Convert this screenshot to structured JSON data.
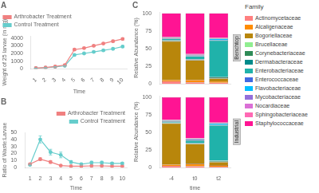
{
  "chart_data": [
    {
      "type": "line",
      "title": "A",
      "xlabel": "Time",
      "ylabel": "Weight of 25 larvae (in mg)",
      "x": [
        1,
        2,
        3,
        4,
        5,
        6,
        7,
        8,
        9,
        10
      ],
      "xlim": [
        0.5,
        10.5
      ],
      "xticks": [
        1,
        2,
        3,
        4,
        5,
        6,
        7,
        8,
        9,
        10
      ],
      "ylim": [
        0,
        4300
      ],
      "yticks": [
        0,
        1000,
        2000,
        3000,
        4000
      ],
      "grid": false,
      "legend": "upper left",
      "series": [
        {
          "name": "Arthrobacter Treatment",
          "color": "#f08080",
          "marker": "circle",
          "values": [
            80,
            150,
            280,
            480,
            2500,
            2700,
            3000,
            3300,
            3600,
            3900
          ],
          "error": [
            10,
            20,
            30,
            50,
            120,
            100,
            100,
            120,
            130,
            140
          ]
        },
        {
          "name": "Control Treatment",
          "color": "#66cdcc",
          "marker": "circle",
          "values": [
            70,
            130,
            240,
            380,
            1800,
            2000,
            2200,
            2400,
            2600,
            2900
          ],
          "error": [
            10,
            15,
            25,
            40,
            100,
            90,
            90,
            100,
            110,
            120
          ]
        }
      ]
    },
    {
      "type": "line",
      "title": "B",
      "xlabel": "Time",
      "ylabel": "Ratio of Waste:Larvae",
      "x": [
        1,
        2,
        3,
        4,
        5,
        6,
        7,
        8,
        9,
        10
      ],
      "xlim": [
        0.5,
        10.5
      ],
      "xticks": [
        1,
        2,
        3,
        4,
        5,
        6,
        7,
        8,
        9,
        10
      ],
      "ylim": [
        0,
        50
      ],
      "yticks": [
        0,
        10,
        20,
        30,
        40,
        50
      ],
      "grid": false,
      "legend": "upper right",
      "series": [
        {
          "name": "Arthrobacter Treatment",
          "color": "#f08080",
          "marker": "circle",
          "values": [
            5,
            12,
            8,
            3,
            2,
            2,
            2.5,
            2.5,
            2,
            2
          ],
          "error": [
            1,
            2,
            2,
            1,
            0.5,
            0.5,
            0.5,
            0.5,
            0.5,
            0.5
          ]
        },
        {
          "name": "Control Treatment",
          "color": "#66cdcc",
          "marker": "circle",
          "values": [
            4,
            40,
            22,
            18,
            8,
            5,
            7,
            7,
            6,
            6
          ],
          "error": [
            1,
            5,
            4,
            4,
            2,
            1.5,
            2,
            2,
            1.5,
            1.5
          ]
        }
      ]
    },
    {
      "type": "bar",
      "stacked": true,
      "title": "C",
      "ylabel": "Relative Abundance (%)",
      "categories": [
        "-4",
        "t0",
        "t2"
      ],
      "ylim": [
        0,
        102
      ],
      "yticks": [
        0,
        25,
        50,
        75,
        100
      ],
      "grid": false,
      "tick_labels": "y",
      "annotations": [
        "Benchtop"
      ],
      "legend": "right",
      "legend_title": "Family",
      "series": [
        {
          "name": "Actinomycetaceae",
          "color": "#FF8080",
          "values": [
            3.4826,
            1.99,
            1.4925
          ]
        },
        {
          "name": "Alcaligenaceae",
          "color": "#FF8C00",
          "values": [
            1.99,
            3.4826,
            1.99
          ]
        },
        {
          "name": "Bogoriellaceae",
          "color": "#B8860B",
          "values": [
            54.7264,
            27.8607,
            3.9801
          ]
        },
        {
          "name": "Brucellaceae",
          "color": "#90EE90",
          "values": [
            0.4975,
            0.4975,
            0.4975
          ]
        },
        {
          "name": "Corynebacteriaceae",
          "color": "#2E8B57",
          "values": [
            0.4975,
            0.4975,
            0.995
          ]
        },
        {
          "name": "Dermabacteraceae",
          "color": "#008B8B",
          "values": [
            0.4975,
            0.4975,
            0.4975
          ]
        },
        {
          "name": "Enterobacteriaceae",
          "color": "#20B2AA",
          "values": [
            1.99,
            3.9801,
            51.7413
          ]
        },
        {
          "name": "Enterococcaceae",
          "color": "#4169E1",
          "values": [
            0.4975,
            0.4975,
            0.4975
          ]
        },
        {
          "name": "Flavobacteriaceae",
          "color": "#00BFFF",
          "values": [
            0.4975,
            0.995,
            1.99
          ]
        },
        {
          "name": "Mycobacteriaceae",
          "color": "#9370DB",
          "values": [
            0.4975,
            0.4975,
            0.4975
          ]
        },
        {
          "name": "Nocardiaceae",
          "color": "#DA70D6",
          "values": [
            0.4975,
            0.995,
            0.4975
          ]
        },
        {
          "name": "Sphingobacteriaceae",
          "color": "#FF69B4",
          "values": [
            0.4975,
            0.4975,
            0.4975
          ]
        },
        {
          "name": "Staphylococcaceae",
          "color": "#FF1493",
          "values": [
            33.8308,
            57.7114,
            34.8259
          ]
        }
      ]
    },
    {
      "type": "bar",
      "stacked": true,
      "xlabel": "time",
      "ylabel": "Relative Abundance (%)",
      "categories": [
        "-4",
        "t0",
        "t2"
      ],
      "ylim": [
        0,
        102
      ],
      "yticks": [
        0,
        25,
        50,
        75,
        100
      ],
      "grid": false,
      "annotations": [
        "Industrial"
      ],
      "series": [
        {
          "name": "Actinomycetaceae",
          "color": "#FF8080",
          "values": [
            2.5,
            1.99,
            1.5
          ]
        },
        {
          "name": "Alcaligenaceae",
          "color": "#FF8C00",
          "values": [
            2.0,
            3.4826,
            2.0
          ]
        },
        {
          "name": "Bogoriellaceae",
          "color": "#B8860B",
          "values": [
            58.0,
            27.8607,
            4.5
          ]
        },
        {
          "name": "Brucellaceae",
          "color": "#90EE90",
          "values": [
            0.5,
            0.4975,
            0.5
          ]
        },
        {
          "name": "Corynebacteriaceae",
          "color": "#2E8B57",
          "values": [
            0.5,
            0.4975,
            1.0
          ]
        },
        {
          "name": "Dermabacteraceae",
          "color": "#008B8B",
          "values": [
            0.5,
            0.4975,
            0.5
          ]
        },
        {
          "name": "Enterobacteriaceae",
          "color": "#20B2AA",
          "values": [
            1.5,
            3.4826,
            50.0
          ]
        },
        {
          "name": "Enterococcaceae",
          "color": "#4169E1",
          "values": [
            0.5,
            0.4975,
            0.5
          ]
        },
        {
          "name": "Flavobacteriaceae",
          "color": "#00BFFF",
          "values": [
            0.5,
            0.995,
            2.0
          ]
        },
        {
          "name": "Mycobacteriaceae",
          "color": "#9370DB",
          "values": [
            0.5,
            0.4975,
            0.5
          ]
        },
        {
          "name": "Nocardiaceae",
          "color": "#DA70D6",
          "values": [
            0.5,
            0.995,
            0.5
          ]
        },
        {
          "name": "Sphingobacteriaceae",
          "color": "#FF69B4",
          "values": [
            0.5,
            0.4975,
            0.5
          ]
        },
        {
          "name": "Staphylococcaceae",
          "color": "#FF1493",
          "values": [
            32.0,
            58.209,
            36.0
          ]
        }
      ]
    }
  ]
}
